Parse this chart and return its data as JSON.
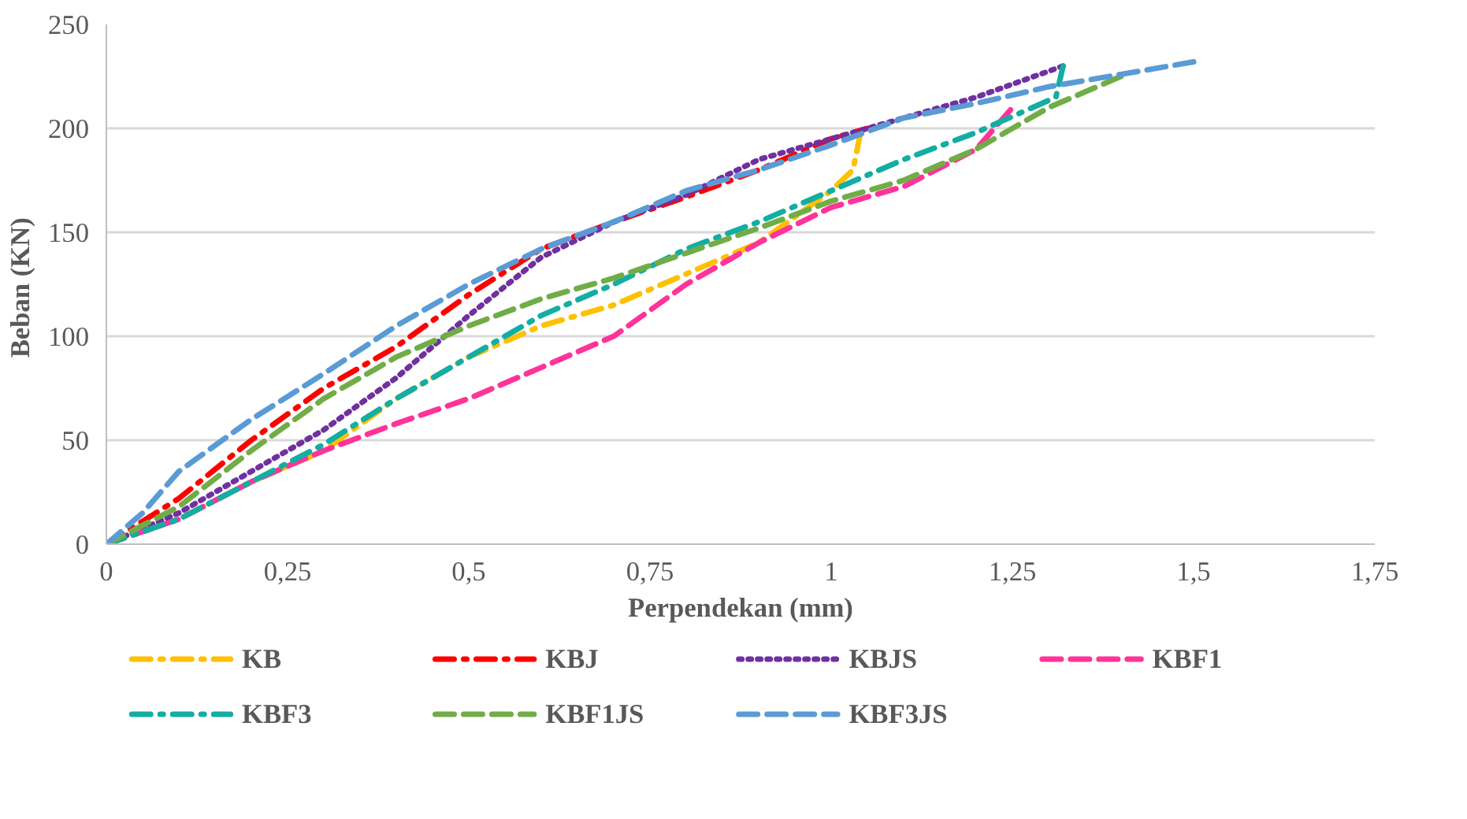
{
  "chart_data": {
    "type": "line",
    "xlabel": "Perpendekan (mm)",
    "ylabel": "Beban  (KN)",
    "xlim": [
      0,
      1.75
    ],
    "xticks": [
      {
        "value": 0,
        "label": "0"
      },
      {
        "value": 0.25,
        "label": "0,25"
      },
      {
        "value": 0.5,
        "label": "0,5"
      },
      {
        "value": 0.75,
        "label": "0,75"
      },
      {
        "value": 1,
        "label": "1"
      },
      {
        "value": 1.25,
        "label": "1,25"
      },
      {
        "value": 1.5,
        "label": "1,5"
      },
      {
        "value": 1.75,
        "label": "1,75"
      }
    ],
    "ylim": [
      0,
      250
    ],
    "yticks": [
      0,
      50,
      100,
      150,
      200,
      250
    ],
    "grid": "y",
    "legend": "bottom",
    "marker": "none",
    "series": [
      {
        "name": "KB",
        "color": "#ffc000",
        "line_style": "dashdot",
        "x": [
          0,
          0.1,
          0.2,
          0.3,
          0.4,
          0.5,
          0.6,
          0.7,
          0.8,
          0.9,
          1.0,
          1.03,
          1.04
        ],
        "values": [
          0,
          12,
          30,
          45,
          70,
          90,
          105,
          115,
          130,
          145,
          170,
          180,
          197
        ]
      },
      {
        "name": "KBJ",
        "color": "#ff0000",
        "line_style": "dashdot",
        "x": [
          0,
          0.1,
          0.2,
          0.3,
          0.4,
          0.5,
          0.6,
          0.7,
          0.8,
          0.9,
          1.0,
          1.05
        ],
        "values": [
          0,
          22,
          50,
          75,
          95,
          120,
          142,
          155,
          167,
          180,
          195,
          200
        ]
      },
      {
        "name": "KBJS",
        "color": "#7030a0",
        "line_style": "dotted",
        "x": [
          0,
          0.1,
          0.2,
          0.3,
          0.4,
          0.5,
          0.6,
          0.7,
          0.8,
          0.9,
          1.0,
          1.1,
          1.2,
          1.32
        ],
        "values": [
          0,
          15,
          35,
          55,
          80,
          110,
          138,
          155,
          168,
          185,
          195,
          205,
          215,
          230
        ]
      },
      {
        "name": "KBF1",
        "color": "#ff3399",
        "line_style": "dashed",
        "x": [
          0,
          0.1,
          0.2,
          0.3,
          0.4,
          0.5,
          0.6,
          0.7,
          0.8,
          0.9,
          1.0,
          1.1,
          1.2,
          1.25
        ],
        "values": [
          0,
          12,
          30,
          45,
          58,
          70,
          85,
          100,
          125,
          145,
          162,
          172,
          190,
          210
        ]
      },
      {
        "name": "KBF3",
        "color": "#13ada4",
        "line_style": "dashdot",
        "x": [
          0,
          0.1,
          0.2,
          0.3,
          0.4,
          0.5,
          0.6,
          0.7,
          0.8,
          0.9,
          1.0,
          1.1,
          1.2,
          1.31,
          1.32
        ],
        "values": [
          0,
          12,
          30,
          48,
          70,
          90,
          110,
          125,
          142,
          155,
          170,
          185,
          198,
          215,
          230
        ]
      },
      {
        "name": "KBF1JS",
        "color": "#70ad47",
        "line_style": "dashed",
        "x": [
          0,
          0.1,
          0.2,
          0.3,
          0.4,
          0.5,
          0.6,
          0.7,
          0.8,
          0.9,
          1.0,
          1.1,
          1.2,
          1.3,
          1.4
        ],
        "values": [
          0,
          18,
          45,
          70,
          90,
          105,
          118,
          128,
          140,
          152,
          165,
          175,
          190,
          210,
          225
        ]
      },
      {
        "name": "KBF3JS",
        "color": "#5b9bd5",
        "line_style": "dashed",
        "x": [
          0,
          0.05,
          0.1,
          0.2,
          0.3,
          0.4,
          0.5,
          0.6,
          0.7,
          0.8,
          0.9,
          1.0,
          1.1,
          1.2,
          1.3,
          1.4,
          1.5
        ],
        "values": [
          0,
          15,
          35,
          60,
          82,
          105,
          125,
          142,
          155,
          170,
          180,
          192,
          205,
          212,
          220,
          226,
          232
        ]
      }
    ]
  }
}
